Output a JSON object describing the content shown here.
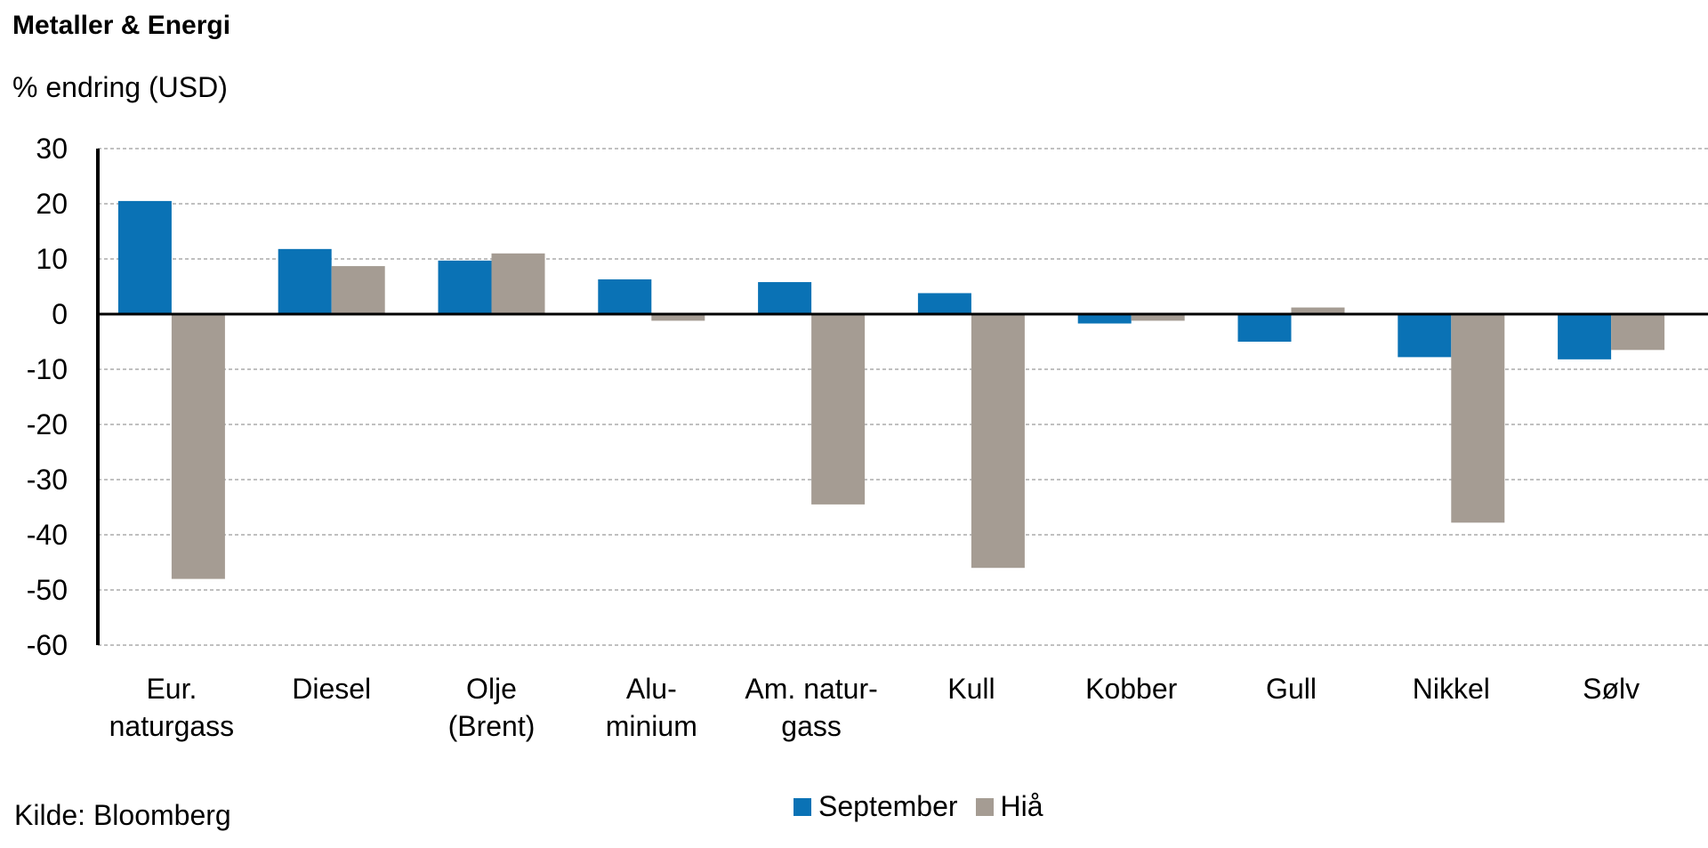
{
  "header": {
    "title": "Metaller & Energi",
    "subtitle": "% endring (USD)"
  },
  "footer": {
    "source": "Kilde: Bloomberg"
  },
  "colors": {
    "september": "#0a72b5",
    "hia": "#a59c93"
  },
  "chart_data": {
    "type": "bar",
    "title": "Metaller & Energi",
    "ylabel": "% endring (USD)",
    "ylim": [
      -60,
      30
    ],
    "yticks": [
      "30",
      "20",
      "10",
      "0",
      "-10",
      "-20",
      "-30",
      "-40",
      "-50",
      "-60"
    ],
    "grid": true,
    "legend_position": "bottom",
    "categories": [
      [
        "Eur.",
        "naturgass"
      ],
      [
        "Diesel"
      ],
      [
        "Olje",
        "(Brent)"
      ],
      [
        "Alu-",
        "minium"
      ],
      [
        "Am. natur-",
        "gass"
      ],
      [
        "Kull"
      ],
      [
        "Kobber"
      ],
      [
        "Gull"
      ],
      [
        "Nikkel"
      ],
      [
        "Sølv"
      ]
    ],
    "series": [
      {
        "name": "September",
        "values": [
          20.5,
          11.8,
          9.7,
          6.3,
          5.8,
          3.8,
          -1.7,
          -5.0,
          -7.8,
          -8.2
        ]
      },
      {
        "name": "Hiå",
        "values": [
          -48.0,
          8.7,
          11.0,
          -1.2,
          -34.5,
          -46.0,
          -1.2,
          1.2,
          -37.8,
          -6.5
        ]
      }
    ]
  }
}
